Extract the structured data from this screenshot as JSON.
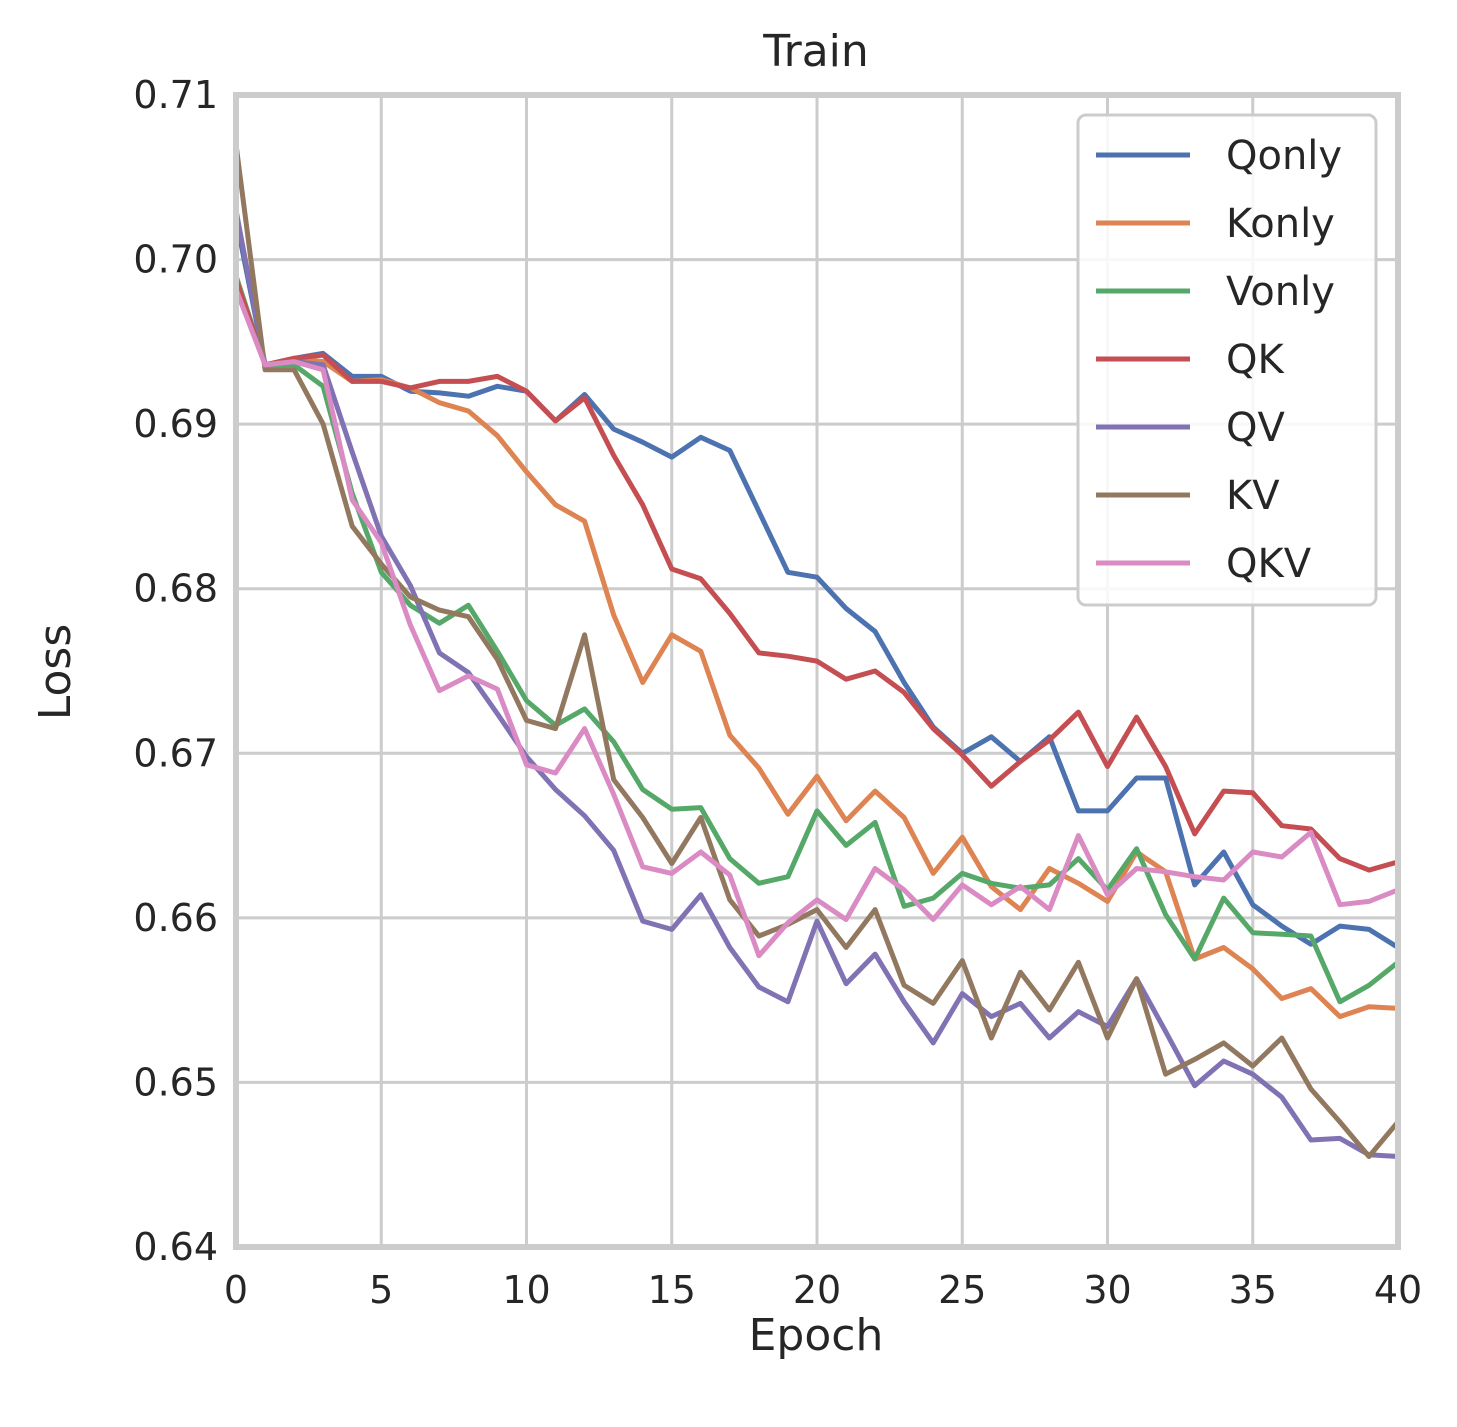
{
  "chart_data": {
    "type": "line",
    "title": "Train",
    "xlabel": "Epoch",
    "ylabel": "Loss",
    "xlim": [
      0,
      40
    ],
    "ylim": [
      0.64,
      0.71
    ],
    "xticks": [
      0,
      5,
      10,
      15,
      20,
      25,
      30,
      35,
      40
    ],
    "xtick_labels": [
      "0",
      "5",
      "10",
      "15",
      "20",
      "25",
      "30",
      "35",
      "40"
    ],
    "yticks": [
      0.64,
      0.65,
      0.66,
      0.67,
      0.68,
      0.69,
      0.7,
      0.71
    ],
    "ytick_labels": [
      "0.64",
      "0.65",
      "0.66",
      "0.67",
      "0.68",
      "0.69",
      "0.70",
      "0.71"
    ],
    "grid": true,
    "legend_position": "top-right",
    "x": [
      0,
      1,
      2,
      3,
      4,
      5,
      6,
      7,
      8,
      9,
      10,
      11,
      12,
      13,
      14,
      15,
      16,
      17,
      18,
      19,
      20,
      21,
      22,
      23,
      24,
      25,
      26,
      27,
      28,
      29,
      30,
      31,
      32,
      33,
      34,
      35,
      36,
      37,
      38,
      39,
      40
    ],
    "series": [
      {
        "name": "Qonly",
        "color": "#4c72b0",
        "values": [
          0.7025,
          0.6936,
          0.694,
          0.6943,
          0.6929,
          0.6929,
          0.692,
          0.6919,
          0.6917,
          0.6923,
          0.692,
          0.6902,
          0.6918,
          0.6897,
          0.6889,
          0.688,
          0.6892,
          0.6884,
          0.6847,
          0.681,
          0.6807,
          0.6788,
          0.6774,
          0.6743,
          0.6716,
          0.67,
          0.671,
          0.6695,
          0.671,
          0.6665,
          0.6665,
          0.6685,
          0.6685,
          0.662,
          0.664,
          0.6608,
          0.6595,
          0.6584,
          0.6595,
          0.6593,
          0.6582
        ]
      },
      {
        "name": "Konly",
        "color": "#dd8452",
        "values": [
          0.699,
          0.6936,
          0.694,
          0.6938,
          0.6926,
          0.6927,
          0.6922,
          0.6913,
          0.6908,
          0.6893,
          0.6871,
          0.6851,
          0.6841,
          0.6784,
          0.6743,
          0.6772,
          0.6762,
          0.6711,
          0.6691,
          0.6663,
          0.6686,
          0.6659,
          0.6677,
          0.6661,
          0.6627,
          0.6649,
          0.6619,
          0.6605,
          0.663,
          0.6621,
          0.661,
          0.664,
          0.6628,
          0.6575,
          0.6582,
          0.6569,
          0.6551,
          0.6557,
          0.654,
          0.6546,
          0.6545
        ]
      },
      {
        "name": "Vonly",
        "color": "#55a868",
        "values": [
          0.699,
          0.6936,
          0.6936,
          0.6923,
          0.6858,
          0.681,
          0.679,
          0.6779,
          0.679,
          0.6762,
          0.6732,
          0.6717,
          0.6727,
          0.6707,
          0.6678,
          0.6666,
          0.6667,
          0.6636,
          0.6621,
          0.6625,
          0.6665,
          0.6644,
          0.6658,
          0.6607,
          0.6612,
          0.6627,
          0.6621,
          0.6618,
          0.662,
          0.6636,
          0.6617,
          0.6642,
          0.6602,
          0.6575,
          0.6612,
          0.6591,
          0.659,
          0.6589,
          0.6549,
          0.6559,
          0.6573
        ]
      },
      {
        "name": "QK",
        "color": "#c44e52",
        "values": [
          0.6988,
          0.6936,
          0.694,
          0.6942,
          0.6926,
          0.6926,
          0.6922,
          0.6926,
          0.6926,
          0.6929,
          0.692,
          0.6902,
          0.6916,
          0.6881,
          0.6851,
          0.6812,
          0.6806,
          0.6785,
          0.6761,
          0.6759,
          0.6756,
          0.6745,
          0.675,
          0.6737,
          0.6715,
          0.6699,
          0.668,
          0.6695,
          0.6708,
          0.6725,
          0.6692,
          0.6722,
          0.6692,
          0.6651,
          0.6677,
          0.6676,
          0.6656,
          0.6654,
          0.6636,
          0.6629,
          0.6634
        ]
      },
      {
        "name": "QV",
        "color": "#8172b3",
        "values": [
          0.703,
          0.6936,
          0.6938,
          0.6936,
          0.6883,
          0.6832,
          0.6802,
          0.6761,
          0.6749,
          0.6724,
          0.6698,
          0.6678,
          0.6662,
          0.6641,
          0.6598,
          0.6593,
          0.6614,
          0.6582,
          0.6558,
          0.6549,
          0.6598,
          0.656,
          0.6578,
          0.6549,
          0.6524,
          0.6554,
          0.654,
          0.6548,
          0.6527,
          0.6543,
          0.6534,
          0.6563,
          0.6531,
          0.6498,
          0.6513,
          0.6505,
          0.6491,
          0.6465,
          0.6466,
          0.6456,
          0.6455
        ]
      },
      {
        "name": "KV",
        "color": "#937860",
        "values": [
          0.707,
          0.6933,
          0.6933,
          0.69,
          0.6838,
          0.6815,
          0.6795,
          0.6787,
          0.6783,
          0.6757,
          0.672,
          0.6715,
          0.6772,
          0.6684,
          0.6661,
          0.6633,
          0.6661,
          0.6611,
          0.6589,
          0.6596,
          0.6605,
          0.6582,
          0.6605,
          0.6559,
          0.6548,
          0.6574,
          0.6527,
          0.6567,
          0.6544,
          0.6573,
          0.6527,
          0.6563,
          0.6505,
          0.6514,
          0.6524,
          0.651,
          0.6527,
          0.6496,
          0.6476,
          0.6455,
          0.6476
        ]
      },
      {
        "name": "QKV",
        "color": "#da8bc3",
        "values": [
          0.6982,
          0.6936,
          0.6938,
          0.6933,
          0.6854,
          0.6828,
          0.6778,
          0.6738,
          0.6747,
          0.6739,
          0.6693,
          0.6688,
          0.6715,
          0.6675,
          0.6631,
          0.6627,
          0.664,
          0.6626,
          0.6577,
          0.6597,
          0.6611,
          0.6599,
          0.663,
          0.6617,
          0.6599,
          0.662,
          0.6608,
          0.6619,
          0.6605,
          0.665,
          0.6614,
          0.663,
          0.6628,
          0.6625,
          0.6623,
          0.664,
          0.6637,
          0.6652,
          0.6608,
          0.661,
          0.6617
        ]
      }
    ]
  }
}
